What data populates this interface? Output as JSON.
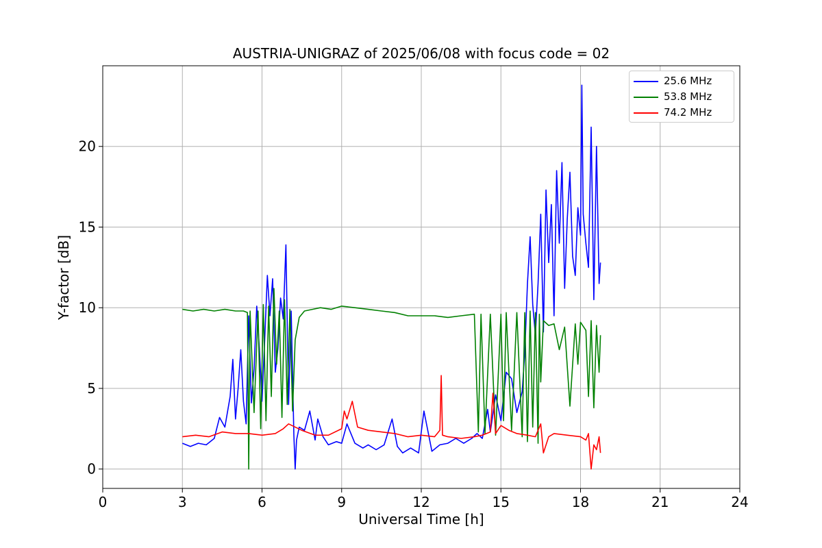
{
  "chart_data": {
    "type": "line",
    "title": "AUSTRIA-UNIGRAZ of 2025/06/08 with focus code = 02",
    "xlabel": "Universal Time [h]",
    "ylabel": "Y-factor [dB]",
    "xlim": [
      0,
      24
    ],
    "ylim": [
      -1.2,
      25
    ],
    "xticks": [
      "0",
      "3",
      "6",
      "9",
      "12",
      "15",
      "18",
      "21",
      "24"
    ],
    "yticks": [
      "0",
      "5",
      "10",
      "15",
      "20"
    ],
    "grid": true,
    "legend_position": "top-right",
    "series": [
      {
        "name": "25.6 MHz",
        "color": "#0000ff",
        "x": [
          3.0,
          3.3,
          3.6,
          3.9,
          4.2,
          4.4,
          4.6,
          4.8,
          4.9,
          5.0,
          5.1,
          5.2,
          5.3,
          5.4,
          5.5,
          5.6,
          5.7,
          5.8,
          5.9,
          6.0,
          6.1,
          6.2,
          6.3,
          6.4,
          6.5,
          6.6,
          6.7,
          6.8,
          6.9,
          7.0,
          7.1,
          7.2,
          7.25,
          7.3,
          7.4,
          7.6,
          7.8,
          8.0,
          8.1,
          8.3,
          8.5,
          8.8,
          9.0,
          9.2,
          9.5,
          9.8,
          10.0,
          10.3,
          10.6,
          10.9,
          11.1,
          11.3,
          11.6,
          11.9,
          12.1,
          12.4,
          12.7,
          13.0,
          13.3,
          13.6,
          13.9,
          14.1,
          14.3,
          14.5,
          14.6,
          14.8,
          15.0,
          15.2,
          15.4,
          15.6,
          15.8,
          15.9,
          16.0,
          16.1,
          16.2,
          16.3,
          16.4,
          16.5,
          16.6,
          16.7,
          16.8,
          16.9,
          17.0,
          17.1,
          17.2,
          17.3,
          17.4,
          17.5,
          17.6,
          17.7,
          17.8,
          17.9,
          18.0,
          18.05,
          18.1,
          18.2,
          18.3,
          18.4,
          18.5,
          18.6,
          18.7,
          18.75
        ],
        "values": [
          1.6,
          1.4,
          1.6,
          1.5,
          1.9,
          3.2,
          2.6,
          4.5,
          6.8,
          3.1,
          5.0,
          7.4,
          4.2,
          2.8,
          9.5,
          4.1,
          6.2,
          10.1,
          7.5,
          4.2,
          8.0,
          12.0,
          9.5,
          11.8,
          6.0,
          7.5,
          10.6,
          9.3,
          13.9,
          4.0,
          9.8,
          2.1,
          0.0,
          1.8,
          2.6,
          2.4,
          3.6,
          1.8,
          3.1,
          2.0,
          1.5,
          1.7,
          1.6,
          2.8,
          1.6,
          1.3,
          1.5,
          1.2,
          1.5,
          3.1,
          1.4,
          1.0,
          1.3,
          1.0,
          3.6,
          1.1,
          1.5,
          1.6,
          1.9,
          1.6,
          1.9,
          2.2,
          1.9,
          3.7,
          2.3,
          4.6,
          3.0,
          6.0,
          5.6,
          3.5,
          4.8,
          7.2,
          11.5,
          14.4,
          10.2,
          8.3,
          11.5,
          15.8,
          8.5,
          17.3,
          12.8,
          16.4,
          9.5,
          18.5,
          14.0,
          19.0,
          11.2,
          15.5,
          18.4,
          13.2,
          12.0,
          16.2,
          14.5,
          23.8,
          15.8,
          14.0,
          12.5,
          21.2,
          10.5,
          20.0,
          11.5,
          12.8
        ]
      },
      {
        "name": "53.8 MHz",
        "color": "#008000",
        "x": [
          3.0,
          3.4,
          3.8,
          4.2,
          4.6,
          5.0,
          5.3,
          5.45,
          5.5,
          5.55,
          5.7,
          5.85,
          5.95,
          6.05,
          6.15,
          6.25,
          6.35,
          6.45,
          6.55,
          6.65,
          6.75,
          6.85,
          6.95,
          7.05,
          7.15,
          7.25,
          7.4,
          7.6,
          7.9,
          8.2,
          8.6,
          9.0,
          9.5,
          10.0,
          10.5,
          11.0,
          11.5,
          12.0,
          12.5,
          13.0,
          13.5,
          14.0,
          14.15,
          14.25,
          14.4,
          14.6,
          14.8,
          15.0,
          15.1,
          15.2,
          15.4,
          15.6,
          15.8,
          15.9,
          16.0,
          16.1,
          16.2,
          16.3,
          16.4,
          16.45,
          16.5,
          16.6,
          16.8,
          17.0,
          17.2,
          17.4,
          17.6,
          17.8,
          17.9,
          18.0,
          18.2,
          18.3,
          18.4,
          18.5,
          18.6,
          18.7,
          18.75
        ],
        "values": [
          9.9,
          9.8,
          9.9,
          9.8,
          9.9,
          9.8,
          9.8,
          9.7,
          0.0,
          9.8,
          3.5,
          9.8,
          2.5,
          10.2,
          3.0,
          10.1,
          4.5,
          11.2,
          6.5,
          9.8,
          3.2,
          10.5,
          4.0,
          9.9,
          3.6,
          8.0,
          9.4,
          9.8,
          9.9,
          10.0,
          9.9,
          10.1,
          10.0,
          9.9,
          9.8,
          9.7,
          9.5,
          9.5,
          9.5,
          9.4,
          9.5,
          9.6,
          2.3,
          9.6,
          2.2,
          9.6,
          2.1,
          9.6,
          3.0,
          9.7,
          2.4,
          9.7,
          2.0,
          9.7,
          1.7,
          9.8,
          2.6,
          9.7,
          1.6,
          9.6,
          5.4,
          9.2,
          8.9,
          9.0,
          7.4,
          8.8,
          3.9,
          9.0,
          6.5,
          9.1,
          8.6,
          4.5,
          9.2,
          3.8,
          8.9,
          6.0,
          8.3
        ]
      },
      {
        "name": "74.2 MHz",
        "color": "#ff0000",
        "x": [
          3.0,
          3.5,
          4.0,
          4.5,
          5.0,
          5.5,
          6.0,
          6.5,
          6.8,
          7.0,
          7.5,
          8.0,
          8.5,
          9.0,
          9.1,
          9.2,
          9.4,
          9.6,
          10.0,
          10.5,
          11.0,
          11.5,
          12.0,
          12.5,
          12.7,
          12.75,
          12.8,
          13.0,
          13.5,
          14.0,
          14.3,
          14.6,
          14.7,
          14.8,
          15.0,
          15.3,
          15.6,
          16.0,
          16.3,
          16.5,
          16.6,
          16.8,
          17.0,
          17.5,
          18.0,
          18.2,
          18.3,
          18.4,
          18.5,
          18.6,
          18.7,
          18.75
        ],
        "values": [
          2.0,
          2.1,
          2.0,
          2.3,
          2.2,
          2.2,
          2.1,
          2.2,
          2.5,
          2.8,
          2.4,
          2.1,
          2.1,
          2.5,
          3.6,
          3.1,
          4.2,
          2.6,
          2.4,
          2.3,
          2.2,
          2.0,
          2.1,
          2.0,
          2.4,
          5.8,
          2.1,
          2.0,
          1.9,
          2.0,
          2.1,
          2.3,
          4.7,
          2.2,
          2.7,
          2.4,
          2.2,
          2.1,
          2.0,
          2.8,
          1.0,
          2.0,
          2.2,
          2.1,
          2.0,
          1.8,
          2.2,
          0.0,
          1.5,
          1.2,
          2.0,
          1.0
        ]
      }
    ]
  }
}
